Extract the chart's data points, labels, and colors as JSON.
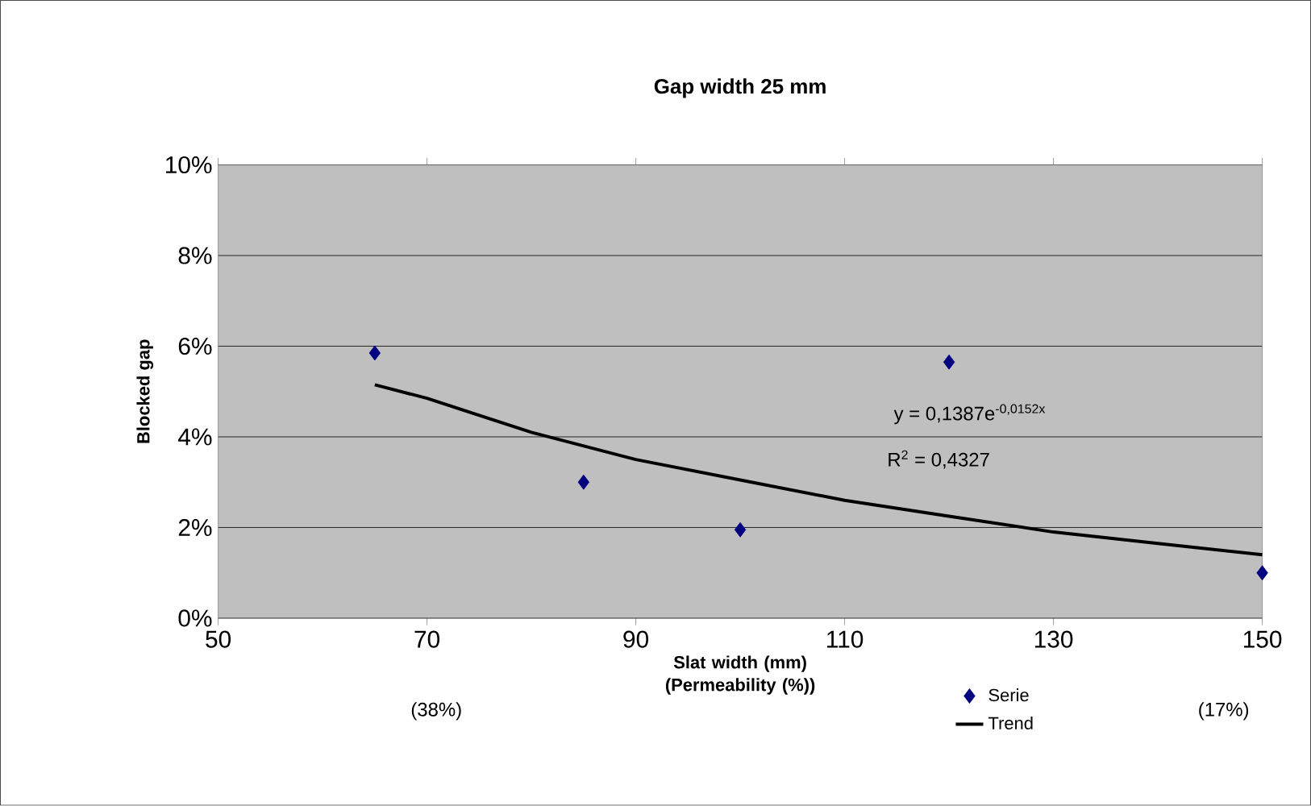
{
  "chart_data": {
    "type": "scatter",
    "title": "Gap width 25 mm",
    "xlabel": "Slat width (mm) (Permeability (%))",
    "ylabel": "Blocked gap",
    "xlim": [
      50,
      150
    ],
    "xticks": [
      50,
      70,
      90,
      110,
      130,
      150
    ],
    "ylim": [
      0,
      10
    ],
    "yticks": [
      {
        "value": 0,
        "label": "0%"
      },
      {
        "value": 2,
        "label": "2%"
      },
      {
        "value": 4,
        "label": "4%"
      },
      {
        "value": 6,
        "label": "6%"
      },
      {
        "value": 8,
        "label": "8%"
      },
      {
        "value": 10,
        "label": "10%"
      }
    ],
    "grid": "y",
    "legend": "bottom right",
    "series": [
      {
        "name": "Serie",
        "marker": "diamond",
        "color": "#000080",
        "x": [
          65,
          85,
          100,
          120,
          150
        ],
        "values": [
          5.85,
          3.0,
          1.95,
          5.65,
          1.0
        ]
      },
      {
        "name": "Trend",
        "type": "line",
        "marker": "none",
        "color": "#000000",
        "x": [
          65,
          70,
          80,
          90,
          100,
          110,
          120,
          130,
          140,
          150
        ],
        "values": [
          5.15,
          4.85,
          4.1,
          3.5,
          3.05,
          2.6,
          2.25,
          1.9,
          1.65,
          1.4
        ]
      }
    ],
    "annotations": [
      "y = 0,1387e$^{-0,0152x}$",
      "R$^{2}$ = 0,4327",
      "(38%)",
      "(17%)"
    ]
  }
}
